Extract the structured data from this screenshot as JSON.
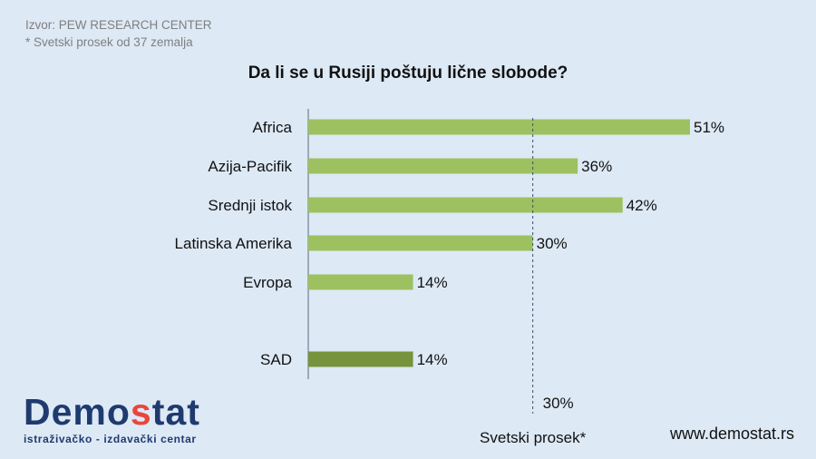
{
  "source_line1": "Izvor: PEW RESEARCH CENTER",
  "source_line2": "* Svetski prosek od 37 zemalja",
  "logo": {
    "part1": "Demo",
    "accent": "s",
    "part2": "tat",
    "subtitle": "istraživačko - izdavački  centar"
  },
  "website": "www.demostat.rs",
  "colors": {
    "bar": "#9dc160",
    "bar_highlight": "#77933c",
    "axis": "#5b6a7a",
    "avg_line": "#3d4f66",
    "background": "#dde9f5"
  },
  "chart_data": {
    "type": "bar",
    "orientation": "horizontal",
    "title": "Da li se u Rusiji poštuju lične slobode?",
    "categories": [
      "Africa",
      "Azija-Pacifik",
      "Srednji istok",
      "Latinska Amerika",
      "Evropa",
      "SAD"
    ],
    "values": [
      51,
      36,
      42,
      30,
      14,
      14
    ],
    "value_labels": [
      "51%",
      "36%",
      "42%",
      "30%",
      "14%",
      "14%"
    ],
    "highlight": [
      "SAD"
    ],
    "xlim": [
      0,
      51
    ],
    "reference_line": {
      "value": 30,
      "label": "Svetski prosek*",
      "value_label": "30%",
      "style": "dashed"
    }
  }
}
